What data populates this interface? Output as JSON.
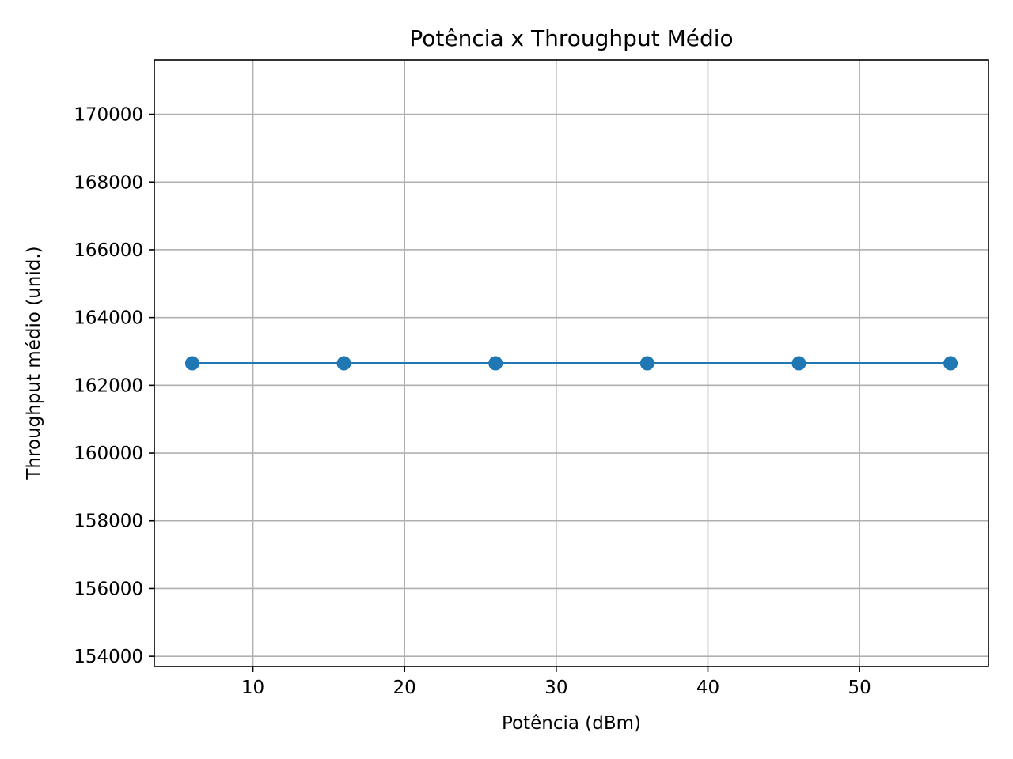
{
  "chart_data": {
    "type": "line",
    "title": "Potência x Throughput Médio",
    "xlabel": "Potência (dBm)",
    "ylabel": "Throughput médio (unid.)",
    "xlim": [
      3.5,
      58.5
    ],
    "ylim": [
      153700,
      171600
    ],
    "x_ticks": [
      10,
      20,
      30,
      40,
      50
    ],
    "y_ticks": [
      154000,
      156000,
      158000,
      160000,
      162000,
      164000,
      166000,
      168000,
      170000
    ],
    "grid": true,
    "series": [
      {
        "name": "Throughput médio",
        "color": "#1f77b4",
        "marker": "circle",
        "x": [
          6,
          16,
          26,
          36,
          46,
          56
        ],
        "y": [
          162650,
          162650,
          162650,
          162650,
          162650,
          162650
        ]
      }
    ]
  }
}
